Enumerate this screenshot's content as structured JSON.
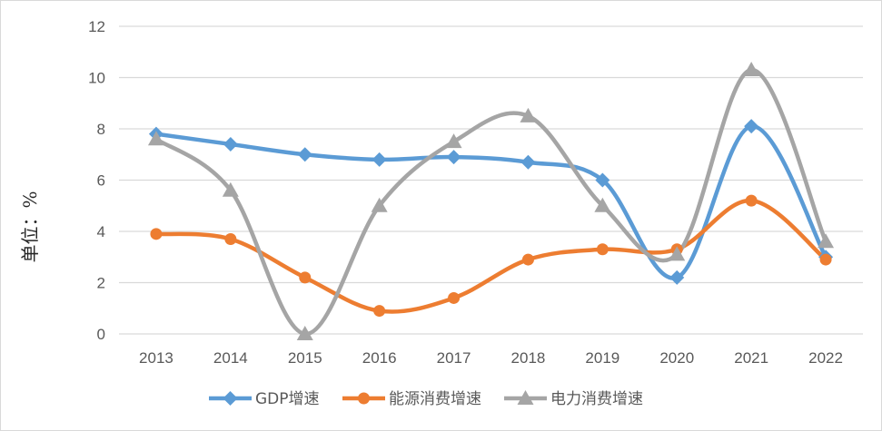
{
  "chart_data": {
    "type": "line",
    "title": "",
    "xlabel": "",
    "ylabel": "单位：%",
    "ylim": [
      0,
      12
    ],
    "yticks": [
      0,
      2,
      4,
      6,
      8,
      10,
      12
    ],
    "grid": true,
    "smooth": true,
    "legend_position": "bottom",
    "categories": [
      "2013",
      "2014",
      "2015",
      "2016",
      "2017",
      "2018",
      "2019",
      "2020",
      "2021",
      "2022"
    ],
    "series": [
      {
        "name": "GDP增速",
        "color": "#5b9bd5",
        "marker": "diamond",
        "values": [
          7.8,
          7.4,
          7.0,
          6.8,
          6.9,
          6.7,
          6.0,
          2.2,
          8.1,
          3.0
        ]
      },
      {
        "name": "能源消费增速",
        "color": "#ed7d31",
        "marker": "circle",
        "values": [
          3.9,
          3.7,
          2.2,
          0.9,
          1.4,
          2.9,
          3.3,
          3.3,
          5.2,
          2.9
        ]
      },
      {
        "name": "电力消费增速",
        "color": "#a5a5a5",
        "marker": "triangle",
        "values": [
          7.6,
          5.6,
          0.0,
          5.0,
          7.5,
          8.5,
          5.0,
          3.1,
          10.3,
          3.6
        ]
      }
    ]
  }
}
